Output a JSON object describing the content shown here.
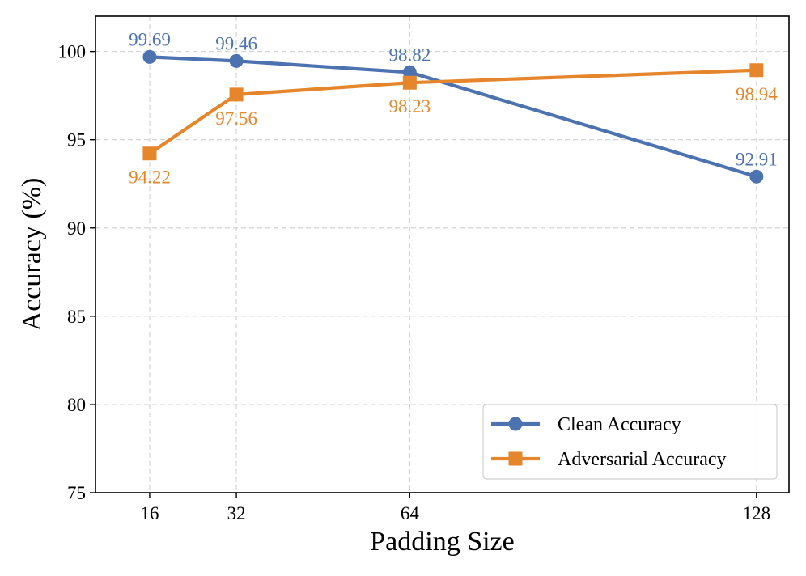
{
  "chart_data": {
    "type": "line",
    "title": "",
    "xlabel": "Padding Size",
    "ylabel": "Accuracy (%)",
    "x": [
      16,
      32,
      64,
      128
    ],
    "x_tick_labels": [
      "16",
      "32",
      "64",
      "128"
    ],
    "xlim": [
      6,
      134
    ],
    "ylim": [
      75,
      102
    ],
    "y_ticks": [
      75,
      80,
      85,
      90,
      95,
      100
    ],
    "y_tick_labels": [
      "75",
      "80",
      "85",
      "90",
      "95",
      "100"
    ],
    "grid": true,
    "legend_position": "bottom-right",
    "series": [
      {
        "name": "Clean Accuracy",
        "color": "#4c72b0",
        "marker": "circle",
        "values": [
          99.69,
          99.46,
          98.82,
          92.91
        ],
        "labels": [
          "99.69",
          "99.46",
          "98.82",
          "92.91"
        ],
        "label_position": "above"
      },
      {
        "name": "Adversarial Accuracy",
        "color": "#e6862c",
        "marker": "square",
        "values": [
          94.22,
          97.56,
          98.23,
          98.94
        ],
        "labels": [
          "94.22",
          "97.56",
          "98.23",
          "98.94"
        ],
        "label_position": "below"
      }
    ]
  }
}
